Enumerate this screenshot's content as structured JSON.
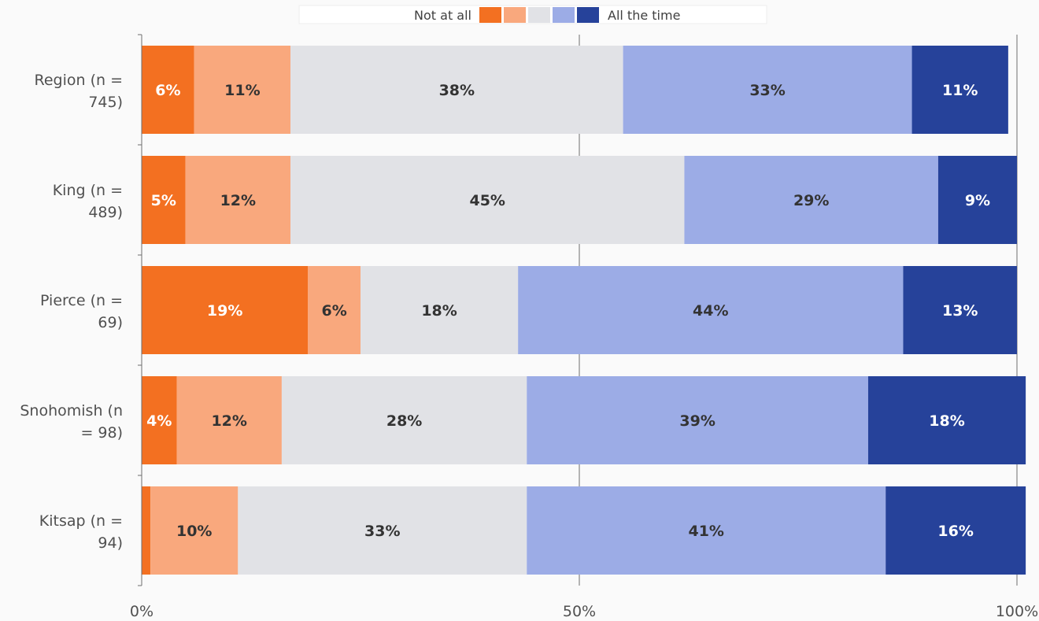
{
  "chart_data": {
    "type": "bar",
    "orientation": "horizontal",
    "stacked": true,
    "percent": true,
    "categories": [
      "Region (n = 745)",
      "King (n = 489)",
      "Pierce (n = 69)",
      "Snohomish (n = 98)",
      "Kitsap (n = 94)"
    ],
    "category_lines": [
      [
        "Region (n =",
        "745)"
      ],
      [
        "King (n =",
        "489)"
      ],
      [
        "Pierce (n =",
        "69)"
      ],
      [
        "Snohomish (n",
        "= 98)"
      ],
      [
        "Kitsap (n =",
        "94)"
      ]
    ],
    "series": [
      {
        "values": [
          6,
          5,
          19,
          4,
          1
        ],
        "labels": [
          "6%",
          "5%",
          "19%",
          "4%",
          ""
        ],
        "color": "#f37021",
        "label_color": "#ffffff"
      },
      {
        "values": [
          11,
          12,
          6,
          12,
          10
        ],
        "labels": [
          "11%",
          "12%",
          "6%",
          "12%",
          "10%"
        ],
        "color": "#f9a87d",
        "label_color": "#333333"
      },
      {
        "values": [
          38,
          45,
          18,
          28,
          33
        ],
        "labels": [
          "38%",
          "45%",
          "18%",
          "28%",
          "33%"
        ],
        "color": "#e1e2e6",
        "label_color": "#333333"
      },
      {
        "values": [
          33,
          29,
          44,
          39,
          41
        ],
        "labels": [
          "33%",
          "29%",
          "44%",
          "39%",
          "41%"
        ],
        "color": "#9cace6",
        "label_color": "#333333"
      },
      {
        "values": [
          11,
          9,
          13,
          18,
          16
        ],
        "labels": [
          "11%",
          "9%",
          "13%",
          "18%",
          "16%"
        ],
        "color": "#26429a",
        "label_color": "#ffffff"
      }
    ],
    "legend": {
      "position": "top",
      "left_label": "Not at all",
      "right_label": "All the time"
    },
    "xlim": [
      0,
      100
    ],
    "x_ticks": [
      0,
      50,
      100
    ],
    "x_tick_labels": [
      "0%",
      "50%",
      "100%"
    ],
    "grid": true
  }
}
